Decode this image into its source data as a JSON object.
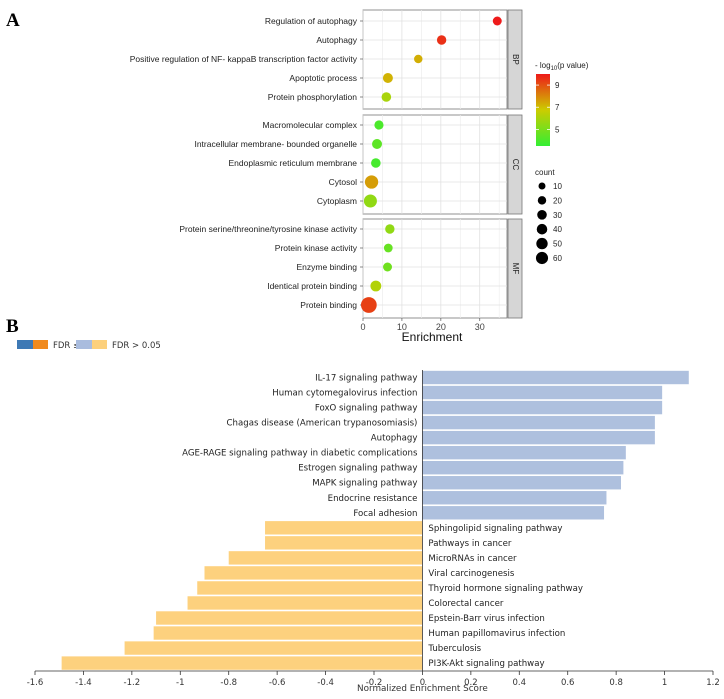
{
  "chart_data": [
    {
      "type": "scatter",
      "panel_label": "A",
      "xlabel": "Enrichment",
      "xlim": [
        0,
        37
      ],
      "xticks": [
        0,
        10,
        20,
        30
      ],
      "color_legend_title_pre": "- log",
      "color_legend_title_sub": "10",
      "color_legend_title_post": "(p value)",
      "color_legend_ticks": [
        9,
        7,
        5
      ],
      "color_range": [
        3.5,
        10
      ],
      "size_legend_title": "count",
      "size_legend": [
        10,
        20,
        30,
        40,
        50,
        60
      ],
      "facets": [
        {
          "name": "BP",
          "terms": [
            {
              "label": "Regulation of autophagy",
              "enrichment": 34.5,
              "neglog10p": 10.0,
              "count": 10
            },
            {
              "label": "Autophagy",
              "enrichment": 20.2,
              "neglog10p": 9.6,
              "count": 12
            },
            {
              "label": "Positive regulation of NF- kappaB transcription factor activity",
              "enrichment": 14.2,
              "neglog10p": 7.3,
              "count": 8
            },
            {
              "label": "Apoptotic process",
              "enrichment": 6.4,
              "neglog10p": 7.2,
              "count": 15
            },
            {
              "label": "Protein phosphorylation",
              "enrichment": 6.0,
              "neglog10p": 6.0,
              "count": 13
            }
          ]
        },
        {
          "name": "CC",
          "terms": [
            {
              "label": "Macromolecular complex",
              "enrichment": 4.1,
              "neglog10p": 4.0,
              "count": 11
            },
            {
              "label": "Intracellular membrane- bounded organelle",
              "enrichment": 3.6,
              "neglog10p": 4.4,
              "count": 15
            },
            {
              "label": "Endoplasmic reticulum membrane",
              "enrichment": 3.3,
              "neglog10p": 3.9,
              "count": 13
            },
            {
              "label": "Cytosol",
              "enrichment": 2.2,
              "neglog10p": 7.6,
              "count": 38
            },
            {
              "label": "Cytoplasm",
              "enrichment": 1.9,
              "neglog10p": 5.5,
              "count": 36
            }
          ]
        },
        {
          "name": "MF",
          "terms": [
            {
              "label": "Protein serine/threonine/tyrosine kinase activity",
              "enrichment": 6.9,
              "neglog10p": 5.5,
              "count": 12
            },
            {
              "label": "Protein kinase activity",
              "enrichment": 6.5,
              "neglog10p": 4.6,
              "count": 9
            },
            {
              "label": "Enzyme binding",
              "enrichment": 6.3,
              "neglog10p": 4.8,
              "count": 10
            },
            {
              "label": "Identical protein binding",
              "enrichment": 3.3,
              "neglog10p": 6.2,
              "count": 20
            },
            {
              "label": "Protein binding",
              "enrichment": 1.5,
              "neglog10p": 9.3,
              "count": 62
            }
          ]
        }
      ]
    },
    {
      "type": "bar",
      "orientation": "horizontal",
      "panel_label": "B",
      "xlabel": "Normalized Enrichment Score",
      "xlim": [
        -1.6,
        1.2
      ],
      "xticks": [
        -1.6,
        -1.4,
        -1.2,
        -1.0,
        -0.8,
        -0.6,
        -0.4,
        -0.2,
        0.0,
        0.2,
        0.4,
        0.6,
        0.8,
        1.0,
        1.2
      ],
      "xtick_labels": [
        "-1.6",
        "-1.4",
        "-1.2",
        "-1",
        "-0.8",
        "-0.6",
        "-0.4",
        "-0.2",
        "0",
        "0.2",
        "0.4",
        "0.6",
        "0.8",
        "1",
        "1.2"
      ],
      "legend": [
        {
          "label": "FDR ≤ 0.05",
          "colors": [
            "#3e79b5",
            "#f08a1e"
          ]
        },
        {
          "label": "FDR > 0.05",
          "colors": [
            "#a9bcde",
            "#fcd07c"
          ]
        }
      ],
      "positive_color": "#aec0de",
      "negative_color": "#fdd17e",
      "categories": [
        "IL-17 signaling pathway",
        "Human cytomegalovirus infection",
        "FoxO signaling pathway",
        "Chagas disease (American trypanosomiasis)",
        "Autophagy",
        "AGE-RAGE signaling pathway in diabetic complications",
        "Estrogen signaling pathway",
        "MAPK signaling pathway",
        "Endocrine resistance",
        "Focal adhesion",
        "Sphingolipid signaling pathway",
        "Pathways in cancer",
        "MicroRNAs in cancer",
        "Viral carcinogenesis",
        "Thyroid hormone signaling pathway",
        "Colorectal cancer",
        "Epstein-Barr virus infection",
        "Human papillomavirus infection",
        "Tuberculosis",
        "PI3K-Akt signaling pathway"
      ],
      "values": [
        1.1,
        0.99,
        0.99,
        0.96,
        0.96,
        0.84,
        0.83,
        0.82,
        0.76,
        0.75,
        -0.65,
        -0.65,
        -0.8,
        -0.9,
        -0.93,
        -0.97,
        -1.1,
        -1.11,
        -1.23,
        -1.49
      ]
    }
  ]
}
